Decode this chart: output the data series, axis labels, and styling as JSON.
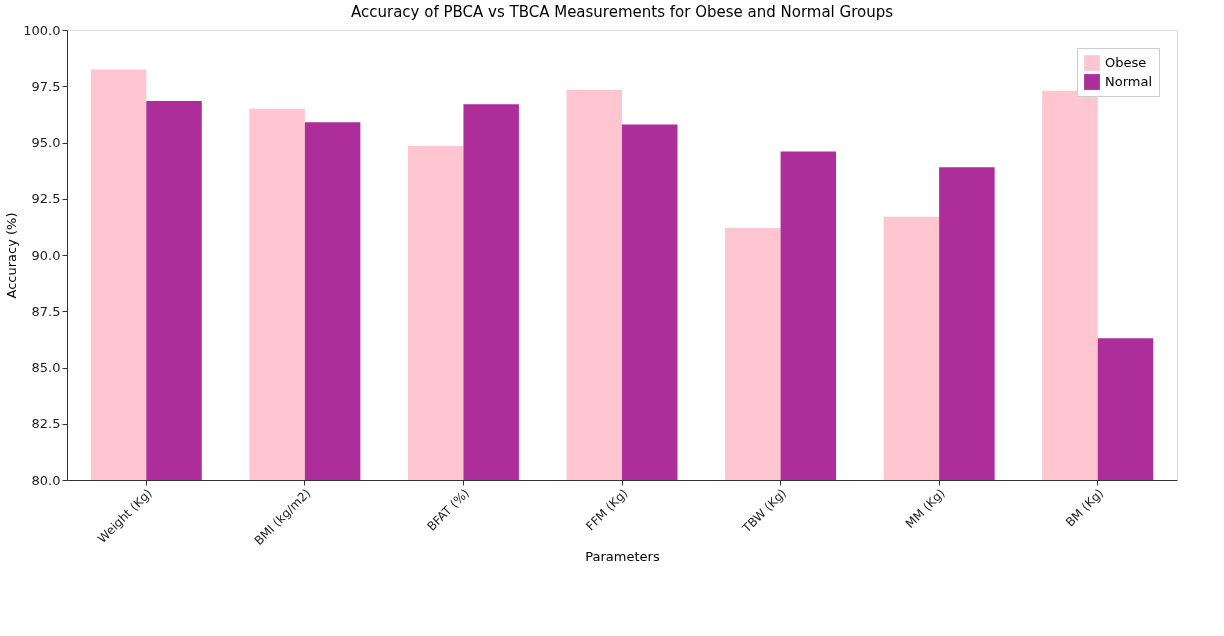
{
  "chart_data": {
    "type": "bar",
    "title": "Accuracy of PBCA vs TBCA Measurements for Obese and Normal Groups",
    "xlabel": "Parameters",
    "ylabel": "Accuracy (%)",
    "categories": [
      "Weight (Kg)",
      "BMI (kg/m2)",
      "BFAT (%)",
      "FFM (Kg)",
      "TBW (Kg)",
      "MM (Kg)",
      "BM (Kg)"
    ],
    "series": [
      {
        "name": "Obese",
        "color": "#ffc6d1",
        "values": [
          98.25,
          96.5,
          94.85,
          97.35,
          91.2,
          91.7,
          97.3
        ]
      },
      {
        "name": "Normal",
        "color": "#ad2e9a",
        "values": [
          96.85,
          95.9,
          96.7,
          95.8,
          94.6,
          93.9,
          86.3
        ]
      }
    ],
    "ylim": [
      80,
      100
    ],
    "yticks": [
      {
        "value": 80,
        "label": "80.0"
      },
      {
        "value": 82.5,
        "label": "82.5"
      },
      {
        "value": 85,
        "label": "85.0"
      },
      {
        "value": 87.5,
        "label": "87.5"
      },
      {
        "value": 90,
        "label": "90.0"
      },
      {
        "value": 92.5,
        "label": "92.5"
      },
      {
        "value": 95,
        "label": "95.0"
      },
      {
        "value": 97.5,
        "label": "97.5"
      },
      {
        "value": 100,
        "label": "100.0"
      }
    ],
    "grid": false,
    "legend": "top right"
  }
}
